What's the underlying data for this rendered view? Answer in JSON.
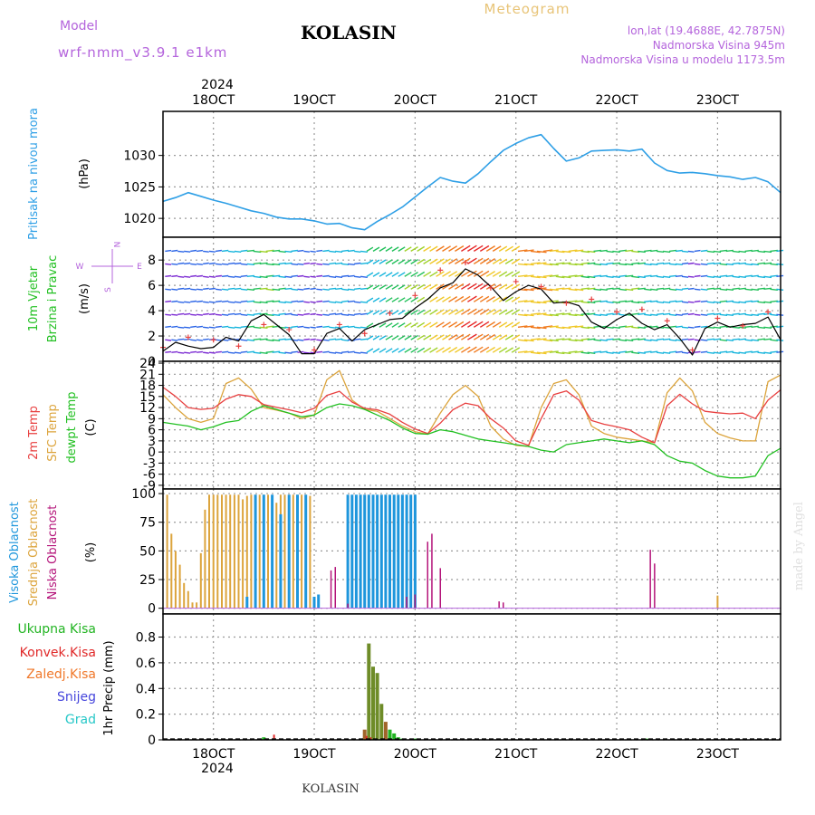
{
  "header": {
    "model_label": "Model",
    "model_name": "wrf-nmm_v3.9.1 e1km",
    "location": "KOLASIN",
    "product": "Meteogram",
    "coords": "lon,lat (19.4688E, 42.7875N)",
    "elevation": "Nadmorska Visina 945m",
    "model_elevation": "Nadmorska Visina u modelu 1173.5m",
    "year_top": "2024",
    "year_bottom": "2024",
    "footer_location": "KOLASIN",
    "watermark": "made by Angel"
  },
  "colors": {
    "pressure": "#2e9fe6",
    "temp2m": "#e84040",
    "sfc": "#dca43c",
    "dew": "#22c022",
    "high_cloud": "#1e96dc",
    "mid_cloud": "#dca43c",
    "low_cloud": "#b4147a",
    "precip_total": "#22b422",
    "precip_conv": "#e02828",
    "precip_frozen": "#f0782a",
    "snow": "#4646dc",
    "grad": "#28c8c8",
    "label_purple": "#b464dc",
    "wind_speed_line": "#000000",
    "gust_marks": "#e84040"
  },
  "chart_data": [
    {
      "type": "line",
      "panel": "pressure",
      "ylabel_lines": [
        "Pritisak na nivou mora",
        "(hPa)"
      ],
      "ylim": [
        1017,
        1037
      ],
      "yticks": [
        1020,
        1025,
        1030
      ],
      "x_ticks": [
        "18OCT",
        "19OCT",
        "20OCT",
        "21OCT",
        "22OCT",
        "23OCT"
      ],
      "x_tick_hours": [
        12,
        36,
        60,
        84,
        108,
        132
      ],
      "x_range_hours": [
        0,
        147
      ],
      "grid": true,
      "series": [
        {
          "x": [
            0,
            3,
            6,
            9,
            12,
            15,
            18,
            21,
            24,
            27,
            30,
            33,
            36,
            39,
            42,
            45,
            48,
            51,
            54,
            57,
            60,
            63,
            66,
            69,
            72,
            75,
            78,
            81,
            84,
            87,
            90,
            93,
            96,
            99,
            102,
            105,
            108,
            111,
            114,
            117,
            120,
            123,
            126,
            129,
            132,
            135,
            138,
            141,
            144,
            147
          ],
          "y": [
            1022.7,
            1023.3,
            1024.1,
            1023.5,
            1022.9,
            1022.4,
            1021.8,
            1021.2,
            1020.8,
            1020.2,
            1019.9,
            1019.9,
            1019.6,
            1019.1,
            1019.2,
            1018.5,
            1018.2,
            1019.5,
            1020.6,
            1021.8,
            1023.4,
            1025.0,
            1026.5,
            1025.9,
            1025.6,
            1027.1,
            1029.0,
            1030.8,
            1031.9,
            1032.8,
            1033.3,
            1031.1,
            1029.1,
            1029.6,
            1030.7,
            1030.8,
            1030.9,
            1030.7,
            1031.0,
            1028.8,
            1027.6,
            1027.2,
            1027.3,
            1027.1,
            1026.8,
            1026.6,
            1026.2,
            1026.5,
            1025.8,
            1024.1
          ]
        }
      ]
    },
    {
      "type": "line",
      "panel": "wind",
      "ylabel_lines": [
        "10m Vjetar",
        "Brzina i Pravac",
        "(m/s)"
      ],
      "compass": {
        "n": "N",
        "w": "W",
        "e": "E",
        "s": "S"
      },
      "ylim": [
        0,
        9.8
      ],
      "yticks": [
        0,
        2,
        4,
        6,
        8
      ],
      "grid": true,
      "series": [
        {
          "name": "speed",
          "x": [
            0,
            3,
            6,
            9,
            12,
            15,
            18,
            21,
            24,
            27,
            30,
            33,
            36,
            39,
            42,
            45,
            48,
            51,
            54,
            57,
            60,
            63,
            66,
            69,
            72,
            75,
            78,
            81,
            84,
            87,
            90,
            93,
            96,
            99,
            102,
            105,
            108,
            111,
            114,
            117,
            120,
            123,
            126,
            129,
            132,
            135,
            138,
            141,
            144,
            147
          ],
          "y": [
            0.8,
            1.5,
            1.2,
            1.0,
            1.1,
            1.9,
            1.6,
            3.2,
            3.7,
            2.9,
            2.1,
            0.6,
            0.6,
            2.2,
            2.6,
            1.6,
            2.5,
            2.9,
            3.3,
            3.4,
            4.2,
            4.9,
            5.8,
            6.2,
            7.3,
            6.8,
            5.9,
            4.8,
            5.5,
            6.0,
            5.7,
            4.6,
            4.7,
            4.4,
            3.1,
            2.6,
            3.3,
            3.8,
            3.0,
            2.5,
            2.9,
            1.8,
            0.5,
            2.6,
            3.1,
            2.7,
            2.9,
            3.0,
            3.5,
            1.7
          ]
        },
        {
          "name": "gusts",
          "x": [
            0,
            6,
            12,
            18,
            24,
            30,
            36,
            42,
            48,
            54,
            60,
            66,
            72,
            78,
            84,
            90,
            96,
            102,
            108,
            114,
            120,
            126,
            132,
            138,
            144
          ],
          "y": [
            1.1,
            1.9,
            1.7,
            1.2,
            2.9,
            2.5,
            0.9,
            2.9,
            2.2,
            3.8,
            5.2,
            7.2,
            7.8,
            5.8,
            6.3,
            5.9,
            4.6,
            4.9,
            3.9,
            4.1,
            3.2,
            0.9,
            3.4,
            2.8,
            3.9
          ]
        }
      ]
    },
    {
      "type": "line",
      "panel": "temperature",
      "ylabel_lines": [
        "2m Temp",
        "SFC Temp",
        "dewpt Temp",
        "(C)"
      ],
      "ylim": [
        -10,
        24.5
      ],
      "yticks": [
        -9,
        -6,
        -3,
        0,
        3,
        6,
        9,
        12,
        15,
        18,
        21,
        24
      ],
      "grid": true,
      "series": [
        {
          "name": "2m Temp",
          "x": [
            0,
            3,
            6,
            9,
            12,
            15,
            18,
            21,
            24,
            27,
            30,
            33,
            36,
            39,
            42,
            45,
            48,
            51,
            54,
            57,
            60,
            63,
            66,
            69,
            72,
            75,
            78,
            81,
            84,
            87,
            90,
            93,
            96,
            99,
            102,
            105,
            108,
            111,
            114,
            117,
            120,
            123,
            126,
            129,
            132,
            135,
            138,
            141,
            144,
            147
          ],
          "y": [
            17.5,
            15.0,
            12.0,
            11.5,
            11.8,
            14.3,
            15.5,
            15.0,
            12.8,
            12.1,
            11.4,
            10.6,
            11.8,
            15.3,
            16.4,
            13.5,
            11.8,
            11.4,
            10.2,
            8.0,
            6.2,
            5.0,
            7.8,
            11.4,
            13.2,
            12.5,
            9.0,
            6.5,
            3.0,
            1.8,
            9.0,
            15.5,
            16.5,
            14.0,
            8.5,
            7.5,
            6.8,
            6.0,
            4.0,
            2.5,
            12.5,
            15.6,
            13.0,
            11.0,
            10.6,
            10.3,
            10.5,
            9.0,
            14.0,
            16.8
          ]
        },
        {
          "name": "SFC Temp",
          "x": [
            0,
            3,
            6,
            9,
            12,
            15,
            18,
            21,
            24,
            27,
            30,
            33,
            36,
            39,
            42,
            45,
            48,
            51,
            54,
            57,
            60,
            63,
            66,
            69,
            72,
            75,
            78,
            81,
            84,
            87,
            90,
            93,
            96,
            99,
            102,
            105,
            108,
            111,
            114,
            117,
            120,
            123,
            126,
            129,
            132,
            135,
            138,
            141,
            144,
            147
          ],
          "y": [
            15.5,
            12.0,
            9.0,
            8.0,
            9.0,
            18.5,
            20.0,
            17.0,
            12.0,
            11.3,
            10.5,
            9.0,
            10.0,
            19.5,
            22.0,
            14.0,
            11.5,
            11.0,
            9.0,
            7.0,
            5.5,
            4.8,
            10.5,
            15.5,
            18.0,
            15.0,
            7.0,
            3.5,
            1.8,
            1.5,
            12.0,
            18.5,
            19.5,
            15.5,
            7.0,
            5.0,
            4.0,
            3.5,
            3.0,
            2.5,
            16.0,
            20.0,
            16.5,
            8.0,
            5.0,
            3.8,
            3.0,
            3.0,
            19.0,
            20.8
          ]
        },
        {
          "name": "dewpt Temp",
          "x": [
            0,
            3,
            6,
            9,
            12,
            15,
            18,
            21,
            24,
            27,
            30,
            33,
            36,
            39,
            42,
            45,
            48,
            51,
            54,
            57,
            60,
            63,
            66,
            69,
            72,
            75,
            78,
            81,
            84,
            87,
            90,
            93,
            96,
            99,
            102,
            105,
            108,
            111,
            114,
            117,
            120,
            123,
            126,
            129,
            132,
            135,
            138,
            141,
            144,
            147
          ],
          "y": [
            8.0,
            7.5,
            7.0,
            6.0,
            6.8,
            8.0,
            8.5,
            11.0,
            12.5,
            11.5,
            10.5,
            9.5,
            10.0,
            12.0,
            13.0,
            12.5,
            11.5,
            10.0,
            8.5,
            6.5,
            5.0,
            4.8,
            6.0,
            5.5,
            4.5,
            3.5,
            3.0,
            2.5,
            2.0,
            1.5,
            0.5,
            0.0,
            2.0,
            2.5,
            3.0,
            3.5,
            3.0,
            2.5,
            3.0,
            2.0,
            -1.0,
            -2.5,
            -3.0,
            -5.0,
            -6.5,
            -7.0,
            -7.0,
            -6.5,
            -1.0,
            1.0
          ]
        }
      ]
    },
    {
      "type": "bar",
      "panel": "cloud",
      "ylabel_lines": [
        "Visoka Oblacnost",
        "Srednja Oblacnost",
        "Niska Oblacnost",
        "(%)"
      ],
      "ylim": [
        -5,
        104
      ],
      "yticks": [
        0,
        25,
        50,
        75,
        100
      ],
      "grid": true,
      "series": [
        {
          "name": "Srednja Oblacnost",
          "x": [
            1,
            2,
            3,
            4,
            5,
            6,
            7,
            8,
            9,
            10,
            11,
            12,
            13,
            14,
            15,
            16,
            17,
            18,
            19,
            20,
            21,
            22,
            23,
            24,
            25,
            26,
            27,
            28,
            29,
            30,
            31,
            32,
            33,
            34,
            35,
            132
          ],
          "y": [
            99,
            65,
            50,
            38,
            22,
            15,
            5,
            5,
            48,
            86,
            99,
            99,
            99,
            99,
            99,
            99,
            99,
            99,
            95,
            98,
            99,
            99,
            99,
            99,
            99,
            95,
            92,
            99,
            99,
            99,
            99,
            99,
            99,
            99,
            98,
            11
          ]
        },
        {
          "name": "Visoka Oblacnost",
          "x": [
            20,
            22,
            24,
            26,
            28,
            30,
            32,
            34,
            36,
            37,
            44,
            45,
            46,
            47,
            48,
            49,
            50,
            51,
            52,
            53,
            54,
            55,
            56,
            57,
            58,
            59,
            60
          ],
          "y": [
            10,
            99,
            99,
            99,
            82,
            99,
            99,
            99,
            10,
            12,
            99,
            99,
            99,
            99,
            99,
            99,
            99,
            99,
            99,
            99,
            99,
            99,
            99,
            99,
            99,
            99,
            99
          ]
        },
        {
          "name": "Niska Oblacnost",
          "x": [
            40,
            41,
            44,
            58,
            60,
            63,
            64,
            66,
            80,
            81,
            116,
            117
          ],
          "y": [
            33,
            36,
            4,
            10,
            12,
            58,
            65,
            35,
            6,
            5,
            51,
            39
          ]
        }
      ]
    },
    {
      "type": "bar",
      "panel": "precip",
      "ylabel_lines": [
        "1hr Precip (mm)"
      ],
      "legend": [
        "Ukupna Kisa",
        "Konvek.Kisa",
        "Zaledj.Kisa",
        "Snijeg",
        "Grad"
      ],
      "ylim": [
        0,
        0.98
      ],
      "yticks": [
        0,
        0.2,
        0.4,
        0.6,
        0.8
      ],
      "grid": true,
      "series": [
        {
          "name": "Ukupna Kisa",
          "x": [
            24,
            47,
            48,
            49,
            50,
            51,
            52,
            53,
            54,
            55,
            56,
            57,
            60,
            115,
            116
          ],
          "y": [
            0.02,
            0.01,
            0.08,
            0.75,
            0.57,
            0.52,
            0.28,
            0.14,
            0.08,
            0.05,
            0.02,
            0.01,
            0.01,
            0.01,
            0.01
          ]
        },
        {
          "name": "Konvek.Kisa",
          "x": [
            26,
            48,
            49
          ],
          "y": [
            0.04,
            0.03,
            0.02
          ]
        }
      ]
    }
  ]
}
